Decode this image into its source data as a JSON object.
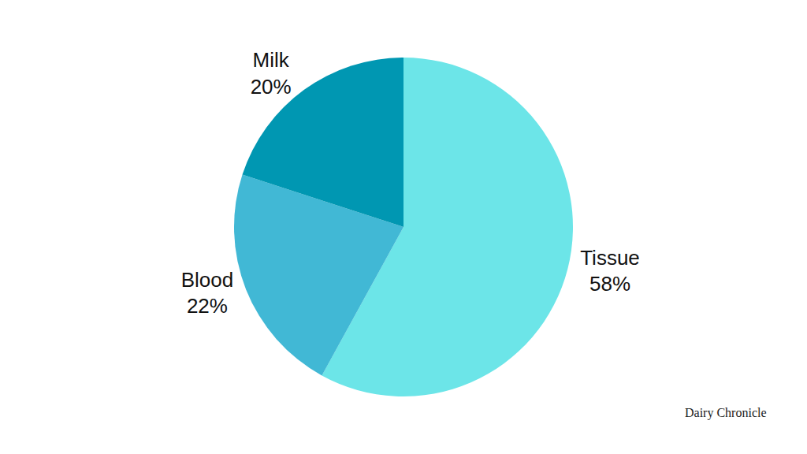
{
  "chart_data": {
    "type": "pie",
    "categories": [
      "Tissue",
      "Blood",
      "Milk"
    ],
    "values": [
      58,
      22,
      20
    ],
    "value_labels": [
      "58%",
      "22%",
      "20%"
    ],
    "colors": [
      "#6ce5e8",
      "#41b8d5",
      "#0097b2"
    ],
    "data_labels": true,
    "annotations": [
      "Dairy Chronicle"
    ]
  }
}
